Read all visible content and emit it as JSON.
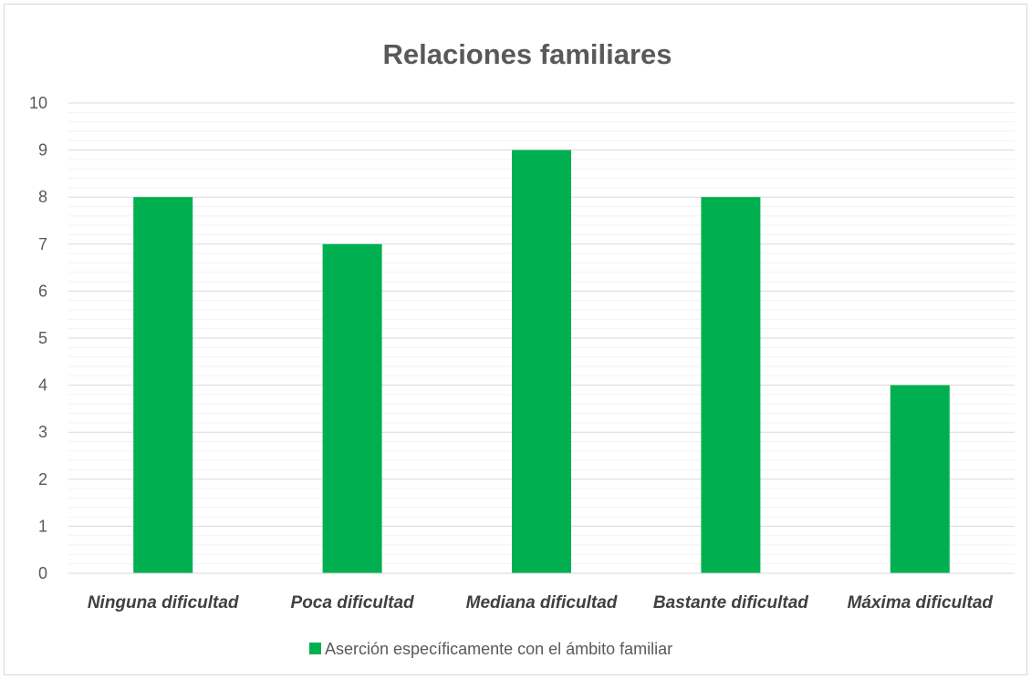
{
  "chart_data": {
    "type": "bar",
    "title": "Relaciones familiares",
    "categories": [
      "Ninguna dificultad",
      "Poca dificultad",
      "Mediana dificultad",
      "Bastante dificultad",
      "Máxima dificultad"
    ],
    "series": [
      {
        "name": "Aserción específicamente con el ámbito familiar",
        "values": [
          8,
          7,
          9,
          8,
          4
        ],
        "color": "#00b050"
      }
    ],
    "y_ticks": [
      "0",
      "1",
      "2",
      "3",
      "4",
      "5",
      "6",
      "7",
      "8",
      "9",
      "10"
    ],
    "ylim": [
      0,
      10
    ],
    "grid": true,
    "minor_grid": true,
    "legend_position": "bottom"
  }
}
